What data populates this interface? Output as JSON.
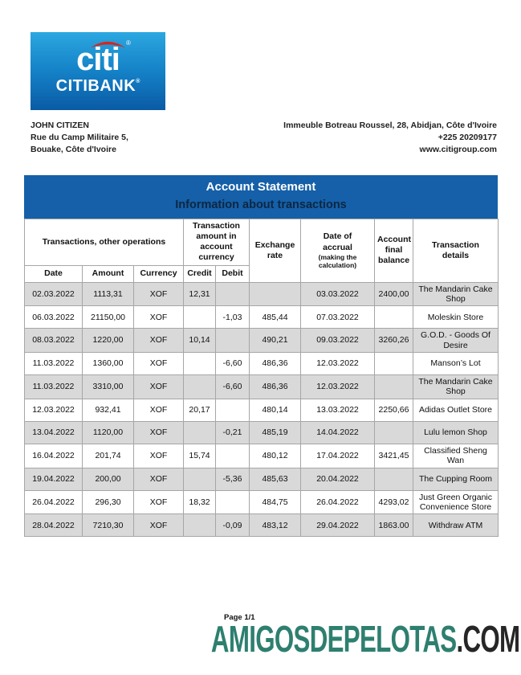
{
  "logo": {
    "brand": "citi",
    "brand_registered": "®",
    "bank": "CITIBANK",
    "bank_registered": "®"
  },
  "customer": {
    "name": "JOHN CITIZEN",
    "address_line1": "Rue du Camp Militaire 5,",
    "address_line2": "Bouake, Côte d'Ivoire"
  },
  "bank_contact": {
    "address": "Immeuble Botreau Roussel, 28, Abidjan, Côte d'Ivoire",
    "phone": "+225 20209177",
    "website": "www.citigroup.com"
  },
  "statement": {
    "title": "Account Statement",
    "subtitle": "Information about transactions"
  },
  "table": {
    "group_headers": {
      "transactions": "Transactions, other operations",
      "transaction_amount": "Transaction amount in account currency",
      "exchange_rate": "Exchange rate",
      "date_of_accrual": "Date of accrual",
      "date_of_accrual_note": "(making the calculation)",
      "account_final_balance": "Account final balance",
      "transaction_details": "Transaction details"
    },
    "sub_headers": {
      "date": "Date",
      "amount": "Amount",
      "currency": "Currency",
      "credit": "Credit",
      "debit": "Debit"
    },
    "rows": [
      {
        "date": "02.03.2022",
        "amount": "1113,31",
        "currency": "XOF",
        "credit": "12,31",
        "debit": "",
        "exchange_rate": "",
        "accrual_date": "03.03.2022",
        "balance": "2400,00",
        "details": "The Mandarin Cake Shop"
      },
      {
        "date": "06.03.2022",
        "amount": "21150,00",
        "currency": "XOF",
        "credit": "",
        "debit": "-1,03",
        "exchange_rate": "485,44",
        "accrual_date": "07.03.2022",
        "balance": "",
        "details": "Moleskin Store"
      },
      {
        "date": "08.03.2022",
        "amount": "1220,00",
        "currency": "XOF",
        "credit": "10,14",
        "debit": "",
        "exchange_rate": "490,21",
        "accrual_date": "09.03.2022",
        "balance": "3260,26",
        "details": "G.O.D. - Goods Of Desire"
      },
      {
        "date": "11.03.2022",
        "amount": "1360,00",
        "currency": "XOF",
        "credit": "",
        "debit": "-6,60",
        "exchange_rate": "486,36",
        "accrual_date": "12.03.2022",
        "balance": "",
        "details": "Manson’s Lot"
      },
      {
        "date": "11.03.2022",
        "amount": "3310,00",
        "currency": "XOF",
        "credit": "",
        "debit": "-6,60",
        "exchange_rate": "486,36",
        "accrual_date": "12.03.2022",
        "balance": "",
        "details": "The Mandarin Cake Shop"
      },
      {
        "date": "12.03.2022",
        "amount": "932,41",
        "currency": "XOF",
        "credit": "20,17",
        "debit": "",
        "exchange_rate": "480,14",
        "accrual_date": "13.03.2022",
        "balance": "2250,66",
        "details": "Adidas Outlet Store"
      },
      {
        "date": "13.04.2022",
        "amount": "1120,00",
        "currency": "XOF",
        "credit": "",
        "debit": "-0,21",
        "exchange_rate": "485,19",
        "accrual_date": "14.04.2022",
        "balance": "",
        "details": "Lulu lemon Shop"
      },
      {
        "date": "16.04.2022",
        "amount": "201,74",
        "currency": "XOF",
        "credit": "15,74",
        "debit": "",
        "exchange_rate": "480,12",
        "accrual_date": "17.04.2022",
        "balance": "3421,45",
        "details": "Classified Sheng Wan"
      },
      {
        "date": "19.04.2022",
        "amount": "200,00",
        "currency": "XOF",
        "credit": "",
        "debit": "-5,36",
        "exchange_rate": "485,63",
        "accrual_date": "20.04.2022",
        "balance": "",
        "details": "The Cupping Room"
      },
      {
        "date": "26.04.2022",
        "amount": "296,30",
        "currency": "XOF",
        "credit": "18,32",
        "debit": "",
        "exchange_rate": "484,75",
        "accrual_date": "26.04.2022",
        "balance": "4293,02",
        "details": "Just Green Organic Convenience Store"
      },
      {
        "date": "28.04.2022",
        "amount": "7210,30",
        "currency": "XOF",
        "credit": "",
        "debit": "-0,09",
        "exchange_rate": "483,12",
        "accrual_date": "29.04.2022",
        "balance": "1863.00",
        "details": "Withdraw ATM"
      }
    ]
  },
  "footer": {
    "page": "Page 1/1",
    "watermark_name": "AMIGOSDEPELOTAS",
    "watermark_tld": ".COM"
  },
  "colors": {
    "band_blue": "#1560a8",
    "subtitle_navy": "#0c2743",
    "logo_blue_top": "#2ba7e0",
    "logo_blue_bottom": "#0a5ba5",
    "logo_red_arc": "#d9261c",
    "row_stripe_gray": "#d9d9d9",
    "table_border_gray": "#a6a6a6",
    "watermark_teal": "#2e7f6f",
    "watermark_dark": "#262626"
  }
}
